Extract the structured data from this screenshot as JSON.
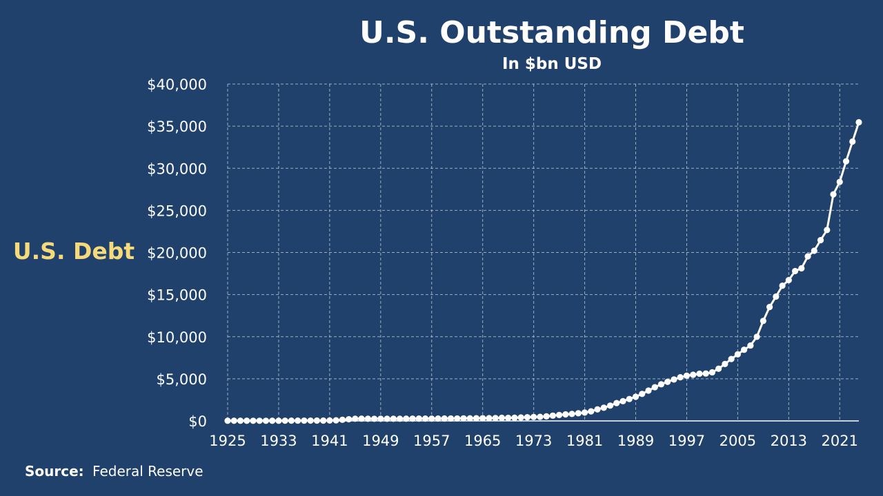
{
  "colors": {
    "background": "#20416b",
    "text": "#ffffff",
    "ylabel": "#f5d97a",
    "series": "#ffffff"
  },
  "source": {
    "label": "Source:",
    "text": "Federal Reserve"
  },
  "chart_data": {
    "type": "line",
    "title": "U.S. Outstanding Debt",
    "subtitle": "In $bn USD",
    "xlabel": "",
    "ylabel": "U.S. Debt",
    "ylim": [
      0,
      40000
    ],
    "xlim": [
      1925,
      2024
    ],
    "grid": true,
    "y_ticks": [
      0,
      5000,
      10000,
      15000,
      20000,
      25000,
      30000,
      35000,
      40000
    ],
    "y_tick_labels": [
      "$0",
      "$5,000",
      "$10,000",
      "$15,000",
      "$20,000",
      "$25,000",
      "$30,000",
      "$35,000",
      "$40,000"
    ],
    "x_ticks": [
      1925,
      1933,
      1941,
      1949,
      1957,
      1965,
      1973,
      1981,
      1989,
      1997,
      2005,
      2013,
      2021
    ],
    "x_tick_labels": [
      "1925",
      "1933",
      "1941",
      "1949",
      "1957",
      "1965",
      "1973",
      "1981",
      "1989",
      "1997",
      "2005",
      "2013",
      "2021"
    ],
    "x": [
      1925,
      1926,
      1927,
      1928,
      1929,
      1930,
      1931,
      1932,
      1933,
      1934,
      1935,
      1936,
      1937,
      1938,
      1939,
      1940,
      1941,
      1942,
      1943,
      1944,
      1945,
      1946,
      1947,
      1948,
      1949,
      1950,
      1951,
      1952,
      1953,
      1954,
      1955,
      1956,
      1957,
      1958,
      1959,
      1960,
      1961,
      1962,
      1963,
      1964,
      1965,
      1966,
      1967,
      1968,
      1969,
      1970,
      1971,
      1972,
      1973,
      1974,
      1975,
      1976,
      1977,
      1978,
      1979,
      1980,
      1981,
      1982,
      1983,
      1984,
      1985,
      1986,
      1987,
      1988,
      1989,
      1990,
      1991,
      1992,
      1993,
      1994,
      1995,
      1996,
      1997,
      1998,
      1999,
      2000,
      2001,
      2002,
      2003,
      2004,
      2005,
      2006,
      2007,
      2008,
      2009,
      2010,
      2011,
      2012,
      2013,
      2014,
      2015,
      2016,
      2017,
      2018,
      2019,
      2020,
      2021,
      2022,
      2023,
      2024
    ],
    "values": [
      21,
      20,
      19,
      18,
      17,
      16,
      17,
      19,
      23,
      27,
      29,
      34,
      36,
      37,
      40,
      43,
      49,
      72,
      137,
      201,
      259,
      269,
      258,
      252,
      253,
      257,
      255,
      259,
      266,
      271,
      274,
      273,
      272,
      280,
      287,
      291,
      293,
      303,
      310,
      316,
      322,
      328,
      340,
      368,
      365,
      381,
      408,
      436,
      466,
      484,
      542,
      629,
      706,
      777,
      829,
      909,
      995,
      1137,
      1372,
      1565,
      1817,
      2121,
      2346,
      2601,
      2868,
      3207,
      3598,
      4002,
      4351,
      4643,
      4921,
      5181,
      5369,
      5478,
      5606,
      5629,
      5770,
      6198,
      6760,
      7354,
      7905,
      8451,
      8951,
      9986,
      11876,
      13529,
      14764,
      16051,
      16719,
      17794,
      18120,
      19539,
      20206,
      21462,
      22670,
      26902,
      28381,
      30824,
      33167,
      35462
    ]
  }
}
